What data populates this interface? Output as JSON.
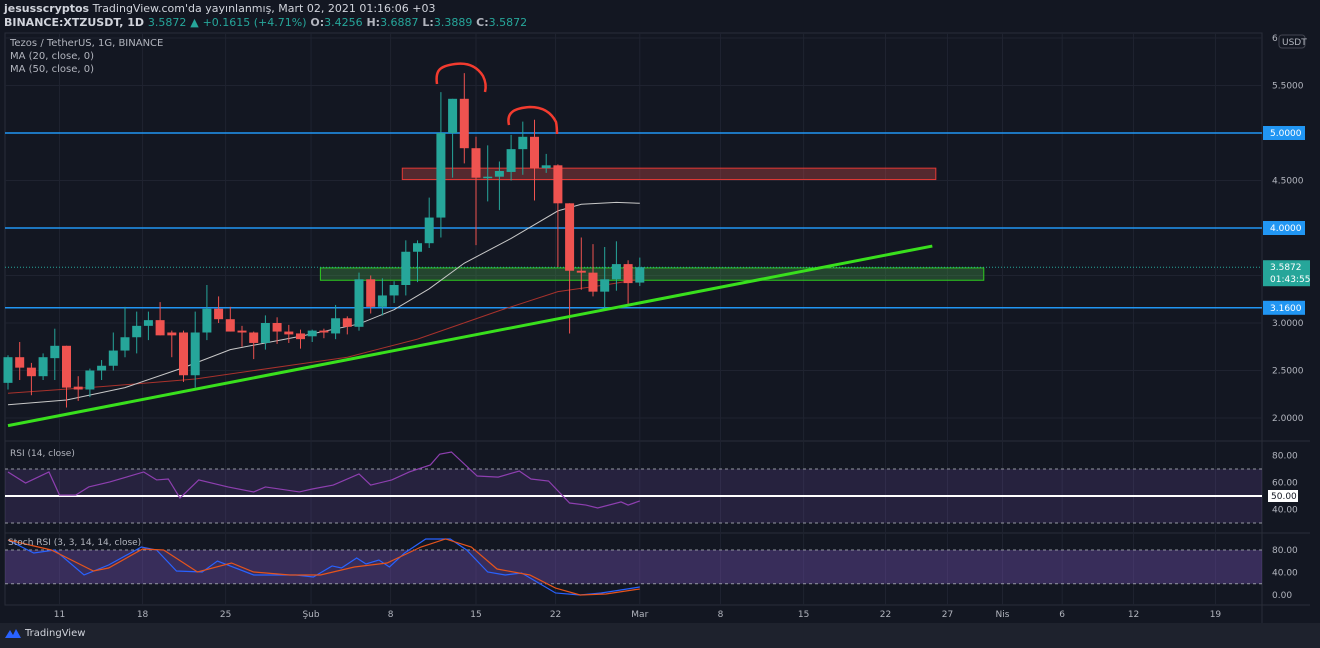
{
  "header": {
    "author": "jesusscryptos",
    "published": "TradingView.com'da yayınlanmış, Mart 02, 2021 01:16:06 +03",
    "symbol": "BINANCE:XTZUSDT, 1D",
    "last": "3.5872",
    "change": "+0.1615 (+4.71%)",
    "o_label": "O:",
    "o": "3.4256",
    "h_label": "H:",
    "h": "3.6887",
    "l_label": "L:",
    "l": "3.3889",
    "c_label": "C:",
    "c": "3.5872"
  },
  "legend": {
    "title": "Tezos / TetherUS, 1G, BINANCE",
    "ma20": "MA (20, close, 0)",
    "ma50": "MA (50, close, 0)",
    "rsi": "RSI (14, close)",
    "stoch": "Stoch RSI (3, 3, 14, 14, close)"
  },
  "colors": {
    "up": "#26a69a",
    "down": "#ef5350",
    "level": "#2196f3",
    "trend": "#39e01d",
    "ma20": "#c8c8c8",
    "ma50": "#a8322c",
    "rsi": "#8e3fb0",
    "k": "#2962ff",
    "d": "#e5541c"
  },
  "axis": {
    "currency": "USDT",
    "price_ticks": [
      {
        "label": "6",
        "value": 6.0
      },
      {
        "label": "5.5000",
        "value": 5.5
      },
      {
        "label": "4.5000",
        "value": 4.5
      },
      {
        "label": "3.0000",
        "value": 3.0
      },
      {
        "label": "2.5000",
        "value": 2.5
      },
      {
        "label": "2.0000",
        "value": 2.0
      }
    ],
    "level_labels": [
      {
        "label": "5.0000",
        "value": 5.0
      },
      {
        "label": "4.0000",
        "value": 4.0
      },
      {
        "label": "3.1600",
        "value": 3.16
      }
    ],
    "last_price": {
      "label": "3.5872",
      "value": 3.5872,
      "countdown": "01:43:55"
    },
    "rsi_ticks": [
      {
        "label": "80.00",
        "value": 80
      },
      {
        "label": "60.00",
        "value": 60
      },
      {
        "label": "40.00",
        "value": 40
      }
    ],
    "rsi_mid": {
      "label": "50.00",
      "value": 50
    },
    "stoch_ticks": [
      {
        "label": "80.00",
        "value": 80
      },
      {
        "label": "40.00",
        "value": 40
      },
      {
        "label": "0.00",
        "value": 0
      }
    ],
    "time_ticks": [
      {
        "label": "11",
        "idx": 4.4
      },
      {
        "label": "18",
        "idx": 11.5
      },
      {
        "label": "25",
        "idx": 18.6
      },
      {
        "label": "Şub",
        "idx": 25.9
      },
      {
        "label": "8",
        "idx": 32.7
      },
      {
        "label": "15",
        "idx": 40
      },
      {
        "label": "22",
        "idx": 46.8
      },
      {
        "label": "Mar",
        "idx": 54
      },
      {
        "label": "8",
        "idx": 60.9
      },
      {
        "label": "15",
        "idx": 68
      },
      {
        "label": "22",
        "idx": 75
      },
      {
        "label": "27",
        "idx": 80.3
      },
      {
        "label": "Nis",
        "idx": 85
      },
      {
        "label": "6",
        "idx": 90.1
      },
      {
        "label": "12",
        "idx": 96.2
      },
      {
        "label": "19",
        "idx": 103.2
      }
    ]
  },
  "chart_data": {
    "type": "candlestick",
    "title": "Tezos / TetherUS, 1G, BINANCE",
    "ylim": [
      1.8,
      6.0
    ],
    "ohlc": [
      [
        2.37,
        2.66,
        2.3,
        2.64
      ],
      [
        2.64,
        2.8,
        2.4,
        2.53
      ],
      [
        2.53,
        2.58,
        2.24,
        2.44
      ],
      [
        2.44,
        2.68,
        2.4,
        2.64
      ],
      [
        2.63,
        2.94,
        2.4,
        2.76
      ],
      [
        2.76,
        2.76,
        2.11,
        2.32
      ],
      [
        2.33,
        2.44,
        2.18,
        2.3
      ],
      [
        2.3,
        2.52,
        2.22,
        2.5
      ],
      [
        2.5,
        2.61,
        2.4,
        2.55
      ],
      [
        2.55,
        2.9,
        2.5,
        2.71
      ],
      [
        2.71,
        3.17,
        2.64,
        2.85
      ],
      [
        2.85,
        3.12,
        2.68,
        2.97
      ],
      [
        2.97,
        3.12,
        2.82,
        3.03
      ],
      [
        3.03,
        3.22,
        2.87,
        2.87
      ],
      [
        2.9,
        2.92,
        2.64,
        2.87
      ],
      [
        2.9,
        2.92,
        2.38,
        2.45
      ],
      [
        2.45,
        3.12,
        2.32,
        2.9
      ],
      [
        2.9,
        3.4,
        2.82,
        3.15
      ],
      [
        3.15,
        3.28,
        3.0,
        3.04
      ],
      [
        3.04,
        3.17,
        2.91,
        2.91
      ],
      [
        2.92,
        2.97,
        2.75,
        2.9
      ],
      [
        2.9,
        2.91,
        2.62,
        2.79
      ],
      [
        2.79,
        3.08,
        2.72,
        3.0
      ],
      [
        3.0,
        3.06,
        2.78,
        2.91
      ],
      [
        2.91,
        2.98,
        2.79,
        2.88
      ],
      [
        2.89,
        2.93,
        2.73,
        2.83
      ],
      [
        2.86,
        2.93,
        2.8,
        2.92
      ],
      [
        2.92,
        2.94,
        2.84,
        2.9
      ],
      [
        2.89,
        3.19,
        2.83,
        3.05
      ],
      [
        3.05,
        3.07,
        2.88,
        2.96
      ],
      [
        2.96,
        3.53,
        2.92,
        3.46
      ],
      [
        3.46,
        3.5,
        3.1,
        3.17
      ],
      [
        3.17,
        3.47,
        3.08,
        3.29
      ],
      [
        3.29,
        3.44,
        3.21,
        3.4
      ],
      [
        3.4,
        3.87,
        3.29,
        3.75
      ],
      [
        3.75,
        3.87,
        3.43,
        3.84
      ],
      [
        3.84,
        4.32,
        3.79,
        4.11
      ],
      [
        4.11,
        5.43,
        3.9,
        5.0
      ],
      [
        5.0,
        5.36,
        4.53,
        5.36
      ],
      [
        5.36,
        5.63,
        4.68,
        4.84
      ],
      [
        4.84,
        4.96,
        3.82,
        4.53
      ],
      [
        4.54,
        4.87,
        4.28,
        4.54
      ],
      [
        4.54,
        4.7,
        4.19,
        4.6
      ],
      [
        4.59,
        4.98,
        4.5,
        4.83
      ],
      [
        4.83,
        5.12,
        4.56,
        4.96
      ],
      [
        4.96,
        5.14,
        4.29,
        4.63
      ],
      [
        4.63,
        4.78,
        4.58,
        4.66
      ],
      [
        4.66,
        4.67,
        3.59,
        4.26
      ],
      [
        4.26,
        4.26,
        2.89,
        3.55
      ],
      [
        3.55,
        3.9,
        3.35,
        3.53
      ],
      [
        3.53,
        3.83,
        3.28,
        3.33
      ],
      [
        3.33,
        3.8,
        3.16,
        3.46
      ],
      [
        3.46,
        3.86,
        3.34,
        3.62
      ],
      [
        3.62,
        3.66,
        3.19,
        3.42
      ],
      [
        3.4256,
        3.6887,
        3.3889,
        3.5872
      ]
    ],
    "ma20": [
      [
        0,
        2.14
      ],
      [
        5,
        2.19
      ],
      [
        10,
        2.32
      ],
      [
        15,
        2.53
      ],
      [
        19,
        2.72
      ],
      [
        25,
        2.86
      ],
      [
        30,
        2.99
      ],
      [
        33,
        3.14
      ],
      [
        36,
        3.36
      ],
      [
        39,
        3.63
      ],
      [
        43,
        3.89
      ],
      [
        47,
        4.18
      ],
      [
        49,
        4.25
      ],
      [
        52,
        4.27
      ],
      [
        54,
        4.26
      ]
    ],
    "ma50": [
      [
        0,
        2.26
      ],
      [
        8,
        2.33
      ],
      [
        16,
        2.41
      ],
      [
        25,
        2.57
      ],
      [
        29,
        2.64
      ],
      [
        35,
        2.83
      ],
      [
        42,
        3.13
      ],
      [
        47,
        3.33
      ],
      [
        51,
        3.4
      ],
      [
        54,
        3.46
      ]
    ],
    "levels": [
      5.0,
      4.0,
      3.16
    ],
    "trendline": [
      [
        0,
        1.92
      ],
      [
        79,
        3.81
      ]
    ],
    "resistance_zone": {
      "from_idx": 33.7,
      "to_idx": 79.3,
      "low": 4.51,
      "high": 4.63
    },
    "support_zone": {
      "from_idx": 26.7,
      "to_idx": 83.4,
      "low": 3.45,
      "high": 3.58
    },
    "rsi": {
      "upper": 70,
      "lower": 30,
      "points": [
        [
          0,
          67.8
        ],
        [
          1.5,
          59.6
        ],
        [
          3.5,
          67.8
        ],
        [
          4.4,
          50.7
        ],
        [
          5.8,
          50.7
        ],
        [
          6.9,
          56.7
        ],
        [
          8.7,
          60.4
        ],
        [
          11.6,
          67.8
        ],
        [
          12.7,
          61.9
        ],
        [
          13.7,
          62.6
        ],
        [
          14.7,
          48.5
        ],
        [
          16.3,
          61.9
        ],
        [
          18.8,
          56.7
        ],
        [
          21,
          53
        ],
        [
          22,
          56.7
        ],
        [
          24.9,
          53
        ],
        [
          26,
          55.2
        ],
        [
          27.8,
          58.1
        ],
        [
          30,
          66.3
        ],
        [
          31,
          58.1
        ],
        [
          32.8,
          61.9
        ],
        [
          34.3,
          67.8
        ],
        [
          36.1,
          73
        ],
        [
          36.9,
          81
        ],
        [
          37.9,
          82.6
        ],
        [
          40.1,
          64.8
        ],
        [
          41.9,
          64
        ],
        [
          43.7,
          68.5
        ],
        [
          44.7,
          62.6
        ],
        [
          46.2,
          61.1
        ],
        [
          48,
          44.8
        ],
        [
          49.4,
          43.3
        ],
        [
          50.4,
          41.1
        ],
        [
          52.4,
          45.6
        ],
        [
          53,
          43.3
        ],
        [
          54,
          46.3
        ]
      ]
    },
    "stoch": {
      "upper": 80,
      "lower": 20,
      "k": [
        [
          0,
          97.8
        ],
        [
          2.2,
          74.7
        ],
        [
          4,
          80
        ],
        [
          6.5,
          35.6
        ],
        [
          8.6,
          53.3
        ],
        [
          11.4,
          85.3
        ],
        [
          12.7,
          80
        ],
        [
          14.4,
          42.7
        ],
        [
          16.6,
          40.9
        ],
        [
          17.9,
          60.4
        ],
        [
          21,
          35.6
        ],
        [
          24.6,
          35.6
        ],
        [
          26.1,
          32
        ],
        [
          27.7,
          51.6
        ],
        [
          28.5,
          48
        ],
        [
          29.8,
          65.8
        ],
        [
          30.6,
          55.1
        ],
        [
          31.7,
          62.2
        ],
        [
          32.6,
          49.8
        ],
        [
          33.9,
          74.7
        ],
        [
          35.7,
          99.6
        ],
        [
          37.8,
          99.6
        ],
        [
          39.2,
          80
        ],
        [
          41,
          40.9
        ],
        [
          42.5,
          35.6
        ],
        [
          43.9,
          39.1
        ],
        [
          46.8,
          3.6
        ],
        [
          48.9,
          0
        ],
        [
          50.7,
          3.6
        ],
        [
          54,
          14.2
        ]
      ],
      "d": [
        [
          0,
          97.8
        ],
        [
          3.7,
          80
        ],
        [
          7.3,
          42.7
        ],
        [
          8.6,
          48
        ],
        [
          11.5,
          81.8
        ],
        [
          13.3,
          80
        ],
        [
          16.2,
          40.9
        ],
        [
          19.1,
          56.9
        ],
        [
          21,
          40.9
        ],
        [
          24.1,
          35.6
        ],
        [
          26.7,
          35.6
        ],
        [
          29.6,
          49.8
        ],
        [
          32.4,
          56.9
        ],
        [
          35.3,
          85.3
        ],
        [
          37.4,
          99.6
        ],
        [
          39.6,
          85.3
        ],
        [
          41.8,
          46.2
        ],
        [
          44.6,
          35.6
        ],
        [
          46.8,
          12.4
        ],
        [
          48.9,
          0
        ],
        [
          51.1,
          1.8
        ],
        [
          54,
          10.7
        ]
      ]
    }
  },
  "footer": {
    "brand": "TradingView"
  }
}
